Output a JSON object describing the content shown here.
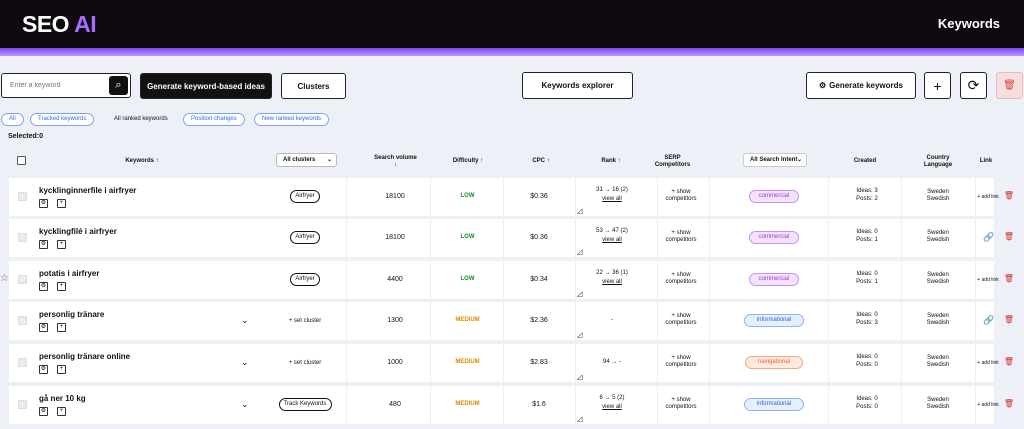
{
  "app": {
    "logo_main": "SEO",
    "logo_accent": "AI",
    "page_title": "Keywords"
  },
  "toolbar": {
    "search_placeholder": "Enter a keyword",
    "generate_ideas_label": "Generate keyword-based ideas",
    "clusters_label": "Clusters",
    "explorer_label": "Keywords explorer",
    "generate_keywords_label": "Generate keywords",
    "gear_glyph": "⚙",
    "search_glyph": "⌕",
    "plus_glyph": "+",
    "refresh_glyph": "⟳",
    "trash_glyph": "🗑"
  },
  "filters": [
    "All",
    "Tracked keywords",
    "All ranked keywords",
    "Position changes",
    "New ranked keywords"
  ],
  "selected_label": "Selected:0",
  "columns": {
    "keywords": "Keywords ↑",
    "clusters": "All clusters",
    "search_volume": "Search volume ↓",
    "difficulty": "Difficulty ↑",
    "cpc": "CPC ↑",
    "rank": "Rank ↑",
    "serp": "SERP Competitors",
    "intent": "All Search Intent",
    "created": "Created",
    "country": "Country Language",
    "link": "Link"
  },
  "rows": [
    {
      "keyword": "kycklinginnerfile i airfryer",
      "cluster": "Airfryer",
      "cluster_type": "pill",
      "volume": "18100",
      "difficulty": "LOW",
      "cpc": "$0.36",
      "rank": "31 → 16 (2)",
      "view_all": "view all",
      "serp": "+ show competitors",
      "intent": "commercial",
      "ideas": "Ideas: 3",
      "posts": "Posts: 2",
      "country": "Sweden",
      "language": "Swedish",
      "link": "+ add link",
      "has_link": false,
      "expand": false
    },
    {
      "keyword": "kycklingfilé i airfryer",
      "cluster": "Airfryer",
      "cluster_type": "pill",
      "volume": "18100",
      "difficulty": "LOW",
      "cpc": "$0.36",
      "rank": "53 → 47 (2)",
      "view_all": "view all",
      "serp": "+ show competitors",
      "intent": "commercial",
      "ideas": "Ideas: 0",
      "posts": "Posts: 1",
      "country": "Sweden",
      "language": "Swedish",
      "link": "",
      "has_link": true,
      "expand": false
    },
    {
      "keyword": "potatis i airfryer",
      "cluster": "Airfryer",
      "cluster_type": "pill",
      "volume": "4400",
      "difficulty": "LOW",
      "cpc": "$0.34",
      "rank": "22 → 36 (1)",
      "view_all": "view all",
      "serp": "+ show competitors",
      "intent": "commercial",
      "ideas": "Ideas: 0",
      "posts": "Posts: 1",
      "country": "Sweden",
      "language": "Swedish",
      "link": "+ add link",
      "has_link": false,
      "expand": false
    },
    {
      "keyword": "personlig tränare",
      "cluster": "+ set cluster",
      "cluster_type": "text",
      "volume": "1300",
      "difficulty": "MEDIUM",
      "cpc": "$2.36",
      "rank": "-",
      "view_all": "",
      "serp": "+ show competitors",
      "intent": "informational",
      "ideas": "Ideas: 0",
      "posts": "Posts: 3",
      "country": "Sweden",
      "language": "Swedish",
      "link": "",
      "has_link": true,
      "expand": true
    },
    {
      "keyword": "personlig tränare online",
      "cluster": "+ set cluster",
      "cluster_type": "text",
      "volume": "1000",
      "difficulty": "MEDIUM",
      "cpc": "$2.83",
      "rank": "94 → -",
      "view_all": "",
      "serp": "+ show competitors",
      "intent": "navigational",
      "ideas": "Ideas: 0",
      "posts": "Posts: 0",
      "country": "Sweden",
      "language": "Swedish",
      "link": "+ add link",
      "has_link": false,
      "expand": true
    },
    {
      "keyword": "gå ner 10 kg",
      "cluster": "Track Keywords",
      "cluster_type": "pill",
      "volume": "480",
      "difficulty": "MEDIUM",
      "cpc": "$1.6",
      "rank": "6 → 5 (2)",
      "view_all": "view all",
      "serp": "+ show competitors",
      "intent": "informational",
      "ideas": "Ideas: 0",
      "posts": "Posts: 0",
      "country": "Sweden",
      "language": "Swedish",
      "link": "+ add link",
      "has_link": false,
      "expand": true
    }
  ],
  "colors": {
    "brand_purple": "#a66dff",
    "accent_bar": "#7a47f0",
    "low": "#168a2e",
    "medium": "#e08a00",
    "danger": "#d62c2c"
  }
}
